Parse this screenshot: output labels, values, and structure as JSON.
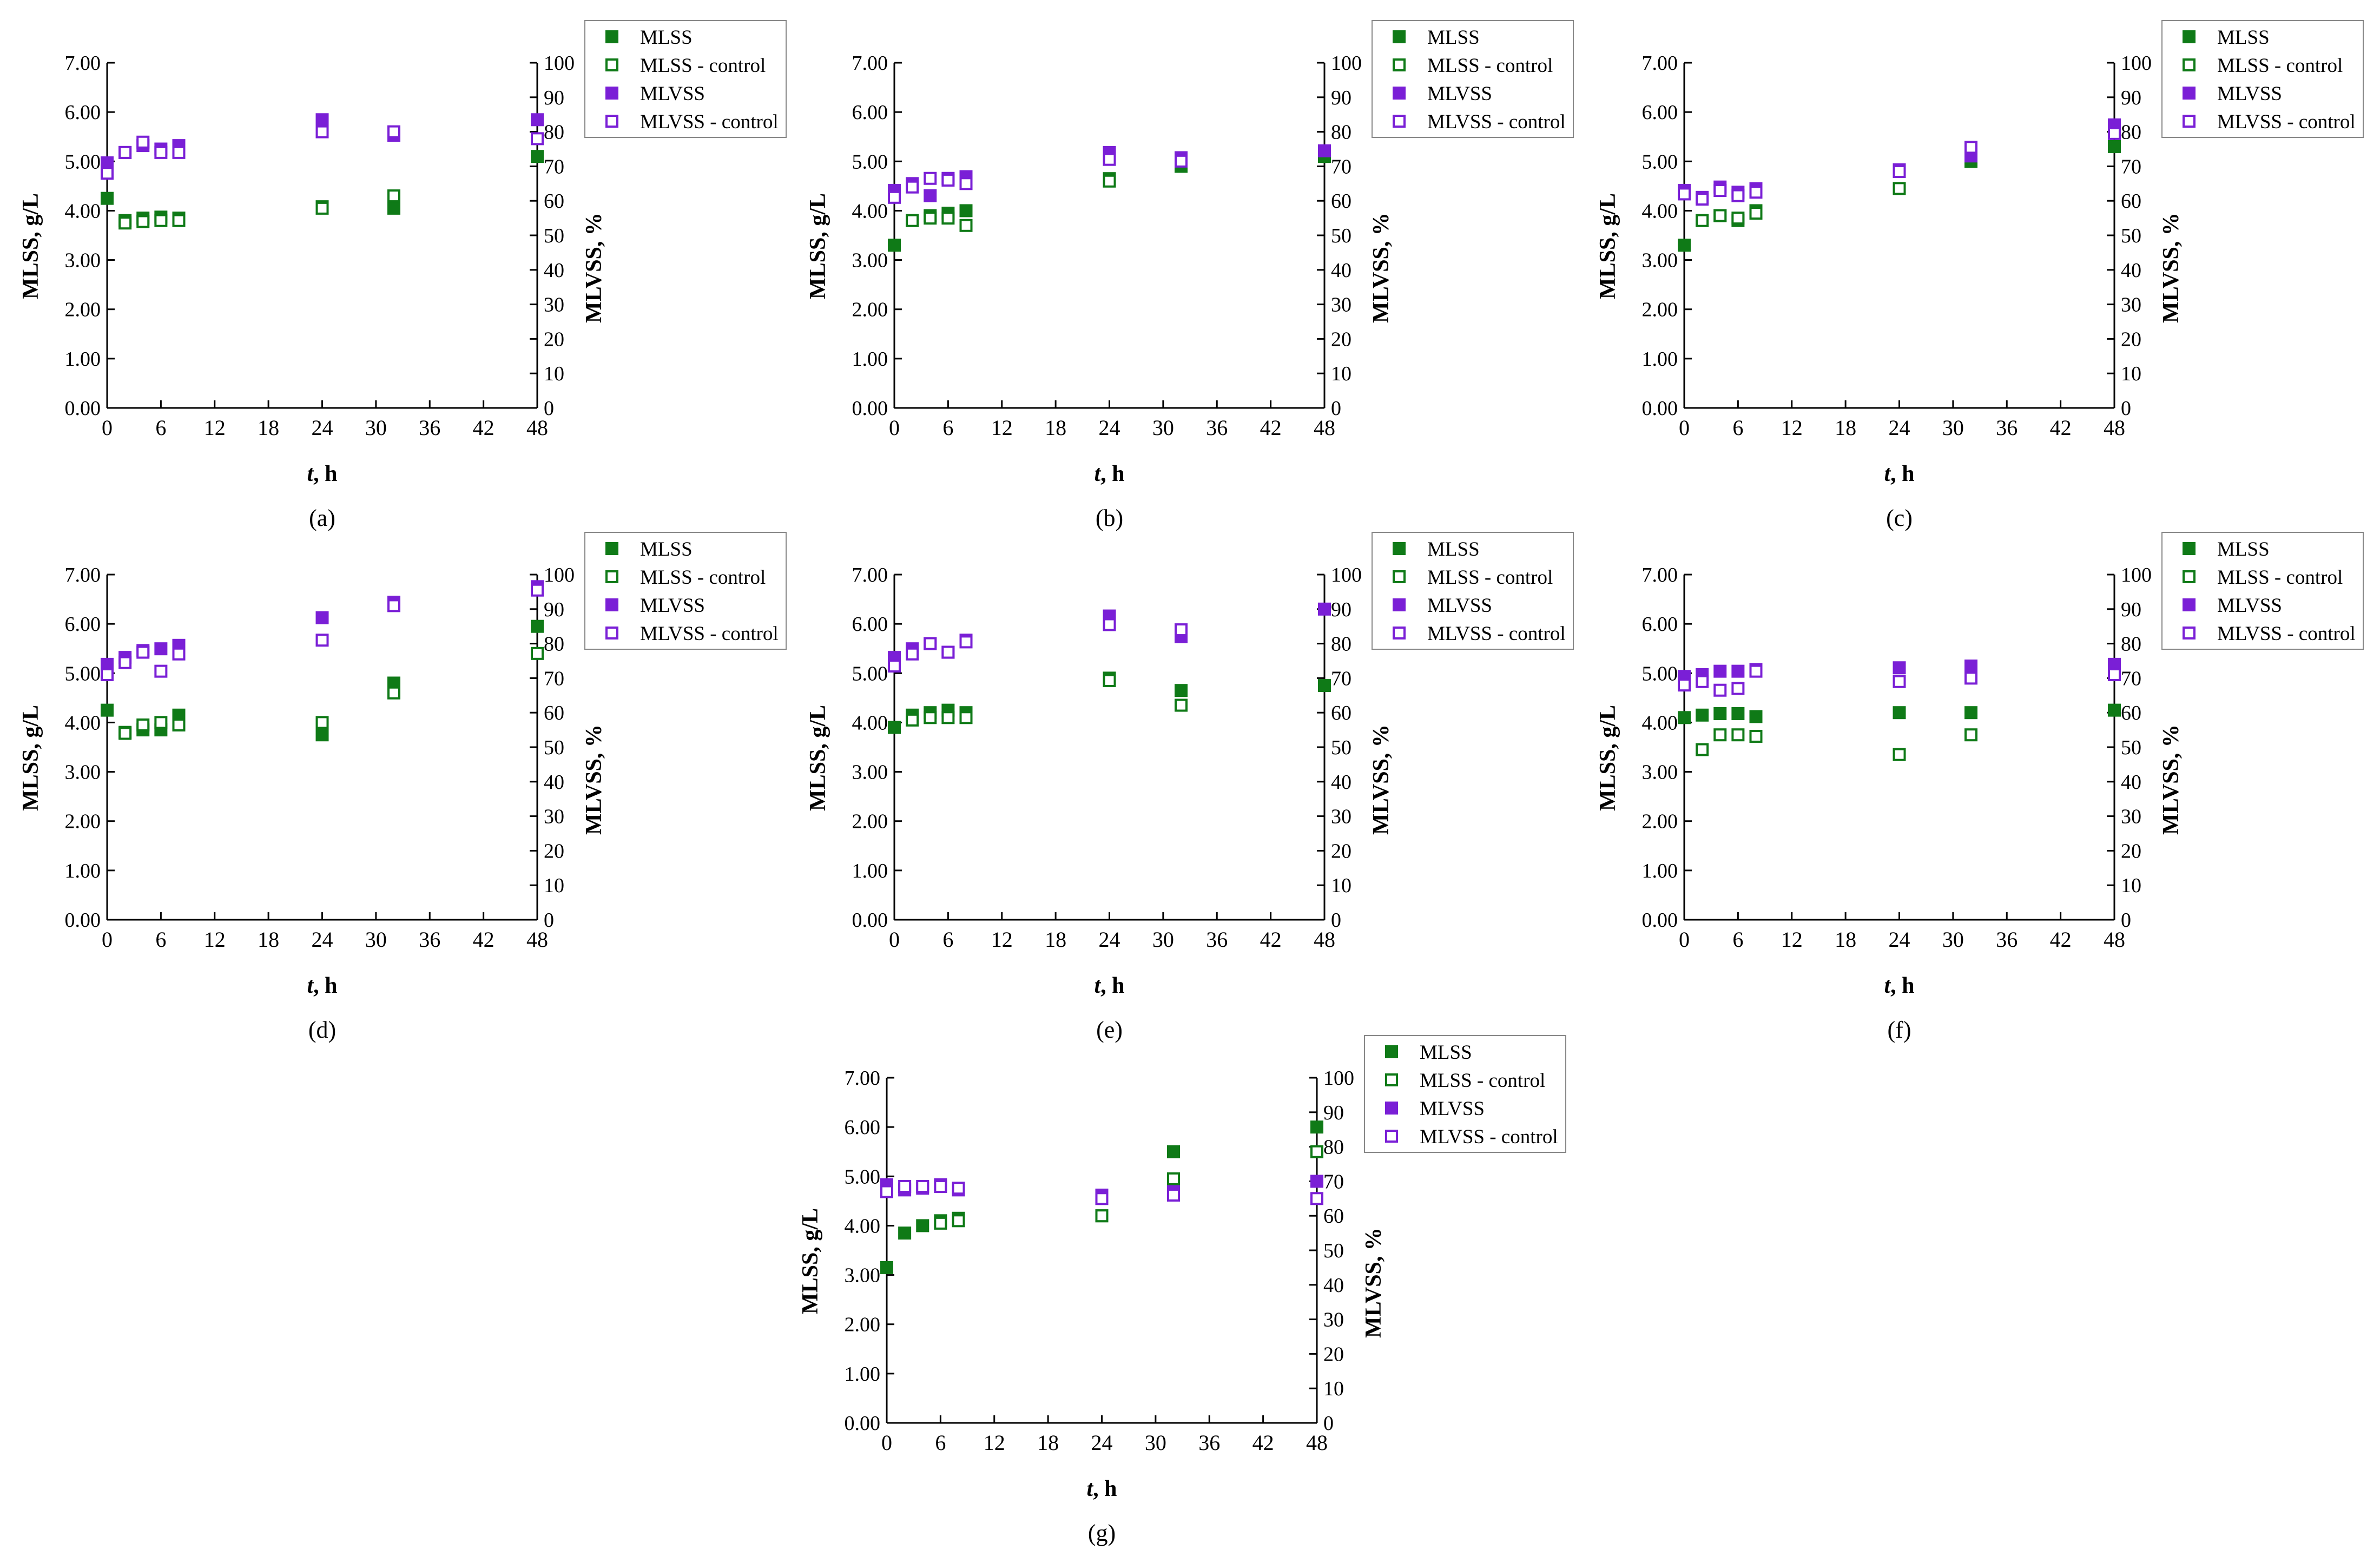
{
  "figure": {
    "panel_count": 7,
    "legend_items": [
      "MLSS",
      "MLSS - control",
      "MLVSS",
      "MLVSS - control"
    ],
    "colors": {
      "mlss": "#0f7a17",
      "mlvss": "#7a1fd6",
      "axis": "#000000",
      "legend_border": "#888888"
    },
    "marker_styles": [
      "filled-square",
      "open-square",
      "filled-square",
      "open-square"
    ]
  },
  "chart_data": [
    {
      "type": "scatter",
      "panel_label": "(a)",
      "xlabel_italic": "t",
      "xlabel_unit": ", h",
      "ylabel": "MLSS, g/L",
      "y2label": "MLVSS, %",
      "xlim": [
        0,
        48
      ],
      "ylim": [
        0,
        7
      ],
      "y2lim": [
        0,
        100
      ],
      "xticks": [
        "0",
        "6",
        "12",
        "18",
        "24",
        "30",
        "36",
        "42",
        "48"
      ],
      "yticks": [
        "0.00",
        "1.00",
        "2.00",
        "3.00",
        "4.00",
        "5.00",
        "6.00",
        "7.00"
      ],
      "y2ticks": [
        "0",
        "10",
        "20",
        "30",
        "40",
        "50",
        "60",
        "70",
        "80",
        "90",
        "100"
      ],
      "series": [
        {
          "name": "MLSS",
          "axis": "left",
          "color": "#0f7a17",
          "filled": true,
          "x": [
            0,
            2,
            4,
            6,
            8,
            24,
            32,
            48
          ],
          "y": [
            4.25,
            3.8,
            3.85,
            3.87,
            3.85,
            4.08,
            4.05,
            5.1
          ]
        },
        {
          "name": "MLSS - control",
          "axis": "left",
          "color": "#0f7a17",
          "filled": false,
          "x": [
            2,
            4,
            6,
            8,
            24,
            32
          ],
          "y": [
            3.75,
            3.78,
            3.8,
            3.8,
            4.05,
            4.3
          ]
        },
        {
          "name": "MLVSS",
          "axis": "right",
          "color": "#7a1fd6",
          "filled": true,
          "x": [
            0,
            2,
            4,
            6,
            8,
            24,
            32,
            48
          ],
          "y": [
            71,
            74,
            76,
            75,
            76,
            83.5,
            79,
            83.5
          ]
        },
        {
          "name": "MLVSS - control",
          "axis": "right",
          "color": "#7a1fd6",
          "filled": false,
          "x": [
            0,
            2,
            4,
            6,
            8,
            24,
            32,
            48
          ],
          "y": [
            68,
            74,
            77,
            74,
            74,
            80,
            80,
            78
          ]
        }
      ]
    },
    {
      "type": "scatter",
      "panel_label": "(b)",
      "xlabel_italic": "t",
      "xlabel_unit": ", h",
      "ylabel": "MLSS, g/L",
      "y2label": "MLVSS, %",
      "xlim": [
        0,
        48
      ],
      "ylim": [
        0,
        7
      ],
      "y2lim": [
        0,
        100
      ],
      "xticks": [
        "0",
        "6",
        "12",
        "18",
        "24",
        "30",
        "36",
        "42",
        "48"
      ],
      "yticks": [
        "0.00",
        "1.00",
        "2.00",
        "3.00",
        "4.00",
        "5.00",
        "6.00",
        "7.00"
      ],
      "y2ticks": [
        "0",
        "10",
        "20",
        "30",
        "40",
        "50",
        "60",
        "70",
        "80",
        "90",
        "100"
      ],
      "series": [
        {
          "name": "MLSS",
          "axis": "left",
          "color": "#0f7a17",
          "filled": true,
          "x": [
            0,
            2,
            4,
            6,
            8,
            24,
            32,
            48
          ],
          "y": [
            3.3,
            3.8,
            3.9,
            3.95,
            4.0,
            4.65,
            4.9,
            5.1
          ]
        },
        {
          "name": "MLSS - control",
          "axis": "left",
          "color": "#0f7a17",
          "filled": false,
          "x": [
            2,
            4,
            6,
            8,
            24
          ],
          "y": [
            3.8,
            3.85,
            3.85,
            3.7,
            4.6
          ]
        },
        {
          "name": "MLVSS",
          "axis": "right",
          "color": "#7a1fd6",
          "filled": true,
          "x": [
            0,
            2,
            4,
            6,
            8,
            24,
            32,
            48
          ],
          "y": [
            63,
            65,
            61.5,
            66.5,
            67,
            74,
            72.5,
            74.5
          ]
        },
        {
          "name": "MLVSS - control",
          "axis": "right",
          "color": "#7a1fd6",
          "filled": false,
          "x": [
            0,
            2,
            4,
            6,
            8,
            24,
            32
          ],
          "y": [
            61,
            64,
            66.5,
            66,
            65,
            72,
            71.5
          ]
        }
      ]
    },
    {
      "type": "scatter",
      "panel_label": "(c)",
      "xlabel_italic": "t",
      "xlabel_unit": ", h",
      "ylabel": "MLSS, g/L",
      "y2label": "MLVSS, %",
      "xlim": [
        0,
        48
      ],
      "ylim": [
        0,
        7
      ],
      "y2lim": [
        0,
        100
      ],
      "xticks": [
        "0",
        "6",
        "12",
        "18",
        "24",
        "30",
        "36",
        "42",
        "48"
      ],
      "yticks": [
        "0.00",
        "1.00",
        "2.00",
        "3.00",
        "4.00",
        "5.00",
        "6.00",
        "7.00"
      ],
      "y2ticks": [
        "0",
        "10",
        "20",
        "30",
        "40",
        "50",
        "60",
        "70",
        "80",
        "90",
        "100"
      ],
      "series": [
        {
          "name": "MLSS",
          "axis": "left",
          "color": "#0f7a17",
          "filled": true,
          "x": [
            0,
            2,
            4,
            6,
            8,
            24,
            32,
            48
          ],
          "y": [
            3.3,
            3.8,
            3.9,
            3.8,
            4.0,
            4.8,
            5.0,
            5.3
          ]
        },
        {
          "name": "MLSS - control",
          "axis": "left",
          "color": "#0f7a17",
          "filled": false,
          "x": [
            2,
            4,
            6,
            8,
            24
          ],
          "y": [
            3.8,
            3.9,
            3.85,
            3.95,
            4.45
          ]
        },
        {
          "name": "MLVSS",
          "axis": "right",
          "color": "#7a1fd6",
          "filled": true,
          "x": [
            0,
            2,
            4,
            6,
            8,
            24,
            32,
            48
          ],
          "y": [
            63,
            61,
            64,
            62.5,
            63.5,
            69,
            73,
            82
          ]
        },
        {
          "name": "MLVSS - control",
          "axis": "right",
          "color": "#7a1fd6",
          "filled": false,
          "x": [
            0,
            2,
            4,
            6,
            8,
            24,
            32,
            48
          ],
          "y": [
            62,
            60.5,
            63,
            61.5,
            62.5,
            68.5,
            75.5,
            79.5
          ]
        }
      ]
    },
    {
      "type": "scatter",
      "panel_label": "(d)",
      "xlabel_italic": "t",
      "xlabel_unit": ", h",
      "ylabel": "MLSS, g/L",
      "y2label": "MLVSS, %",
      "xlim": [
        0,
        48
      ],
      "ylim": [
        0,
        7
      ],
      "y2lim": [
        0,
        100
      ],
      "xticks": [
        "0",
        "6",
        "12",
        "18",
        "24",
        "30",
        "36",
        "42",
        "48"
      ],
      "yticks": [
        "0.00",
        "1.00",
        "2.00",
        "3.00",
        "4.00",
        "5.00",
        "6.00",
        "7.00"
      ],
      "y2ticks": [
        "0",
        "10",
        "20",
        "30",
        "40",
        "50",
        "60",
        "70",
        "80",
        "90",
        "100"
      ],
      "series": [
        {
          "name": "MLSS",
          "axis": "left",
          "color": "#0f7a17",
          "filled": true,
          "x": [
            0,
            2,
            4,
            6,
            8,
            24,
            32,
            48
          ],
          "y": [
            4.25,
            3.8,
            3.85,
            3.85,
            4.15,
            3.75,
            4.8,
            5.95
          ]
        },
        {
          "name": "MLSS - control",
          "axis": "left",
          "color": "#0f7a17",
          "filled": false,
          "x": [
            2,
            4,
            6,
            8,
            24,
            32,
            48
          ],
          "y": [
            3.78,
            3.95,
            4.0,
            3.95,
            4.0,
            4.6,
            5.4
          ]
        },
        {
          "name": "MLVSS",
          "axis": "right",
          "color": "#7a1fd6",
          "filled": true,
          "x": [
            0,
            2,
            4,
            6,
            8,
            24,
            32,
            48
          ],
          "y": [
            74,
            76,
            78,
            78.5,
            79.5,
            87.5,
            92,
            96.5
          ]
        },
        {
          "name": "MLVSS - control",
          "axis": "right",
          "color": "#7a1fd6",
          "filled": false,
          "x": [
            0,
            2,
            4,
            6,
            8,
            24,
            32,
            48
          ],
          "y": [
            71,
            74.5,
            77.5,
            72,
            77,
            81,
            91,
            95.5
          ]
        }
      ]
    },
    {
      "type": "scatter",
      "panel_label": "(e)",
      "xlabel_italic": "t",
      "xlabel_unit": ", h",
      "ylabel": "MLSS, g/L",
      "y2label": "MLVSS, %",
      "xlim": [
        0,
        48
      ],
      "ylim": [
        0,
        7
      ],
      "y2lim": [
        0,
        100
      ],
      "xticks": [
        "0",
        "6",
        "12",
        "18",
        "24",
        "30",
        "36",
        "42",
        "48"
      ],
      "yticks": [
        "0.00",
        "1.00",
        "2.00",
        "3.00",
        "4.00",
        "5.00",
        "6.00",
        "7.00"
      ],
      "y2ticks": [
        "0",
        "10",
        "20",
        "30",
        "40",
        "50",
        "60",
        "70",
        "80",
        "90",
        "100"
      ],
      "series": [
        {
          "name": "MLSS",
          "axis": "left",
          "color": "#0f7a17",
          "filled": true,
          "x": [
            0,
            2,
            4,
            6,
            8,
            24,
            32,
            48
          ],
          "y": [
            3.9,
            4.15,
            4.2,
            4.25,
            4.2,
            4.9,
            4.65,
            4.75
          ]
        },
        {
          "name": "MLSS - control",
          "axis": "left",
          "color": "#0f7a17",
          "filled": false,
          "x": [
            2,
            4,
            6,
            8,
            24,
            32
          ],
          "y": [
            4.05,
            4.1,
            4.1,
            4.1,
            4.85,
            4.35
          ]
        },
        {
          "name": "MLVSS",
          "axis": "right",
          "color": "#7a1fd6",
          "filled": true,
          "x": [
            0,
            2,
            4,
            6,
            8,
            24,
            32,
            48
          ],
          "y": [
            76,
            78.5,
            80,
            77.5,
            81,
            88,
            82,
            90
          ]
        },
        {
          "name": "MLVSS - control",
          "axis": "right",
          "color": "#7a1fd6",
          "filled": false,
          "x": [
            0,
            2,
            4,
            6,
            8,
            24,
            32
          ],
          "y": [
            73.5,
            77,
            80,
            77.5,
            80.5,
            85.5,
            84
          ]
        }
      ]
    },
    {
      "type": "scatter",
      "panel_label": "(f)",
      "xlabel_italic": "t",
      "xlabel_unit": ", h",
      "ylabel": "MLSS, g/L",
      "y2label": "MLVSS, %",
      "xlim": [
        0,
        48
      ],
      "ylim": [
        0,
        7
      ],
      "y2lim": [
        0,
        100
      ],
      "xticks": [
        "0",
        "6",
        "12",
        "18",
        "24",
        "30",
        "36",
        "42",
        "48"
      ],
      "yticks": [
        "0.00",
        "1.00",
        "2.00",
        "3.00",
        "4.00",
        "5.00",
        "6.00",
        "7.00"
      ],
      "y2ticks": [
        "0",
        "10",
        "20",
        "30",
        "40",
        "50",
        "60",
        "70",
        "80",
        "90",
        "100"
      ],
      "series": [
        {
          "name": "MLSS",
          "axis": "left",
          "color": "#0f7a17",
          "filled": true,
          "x": [
            0,
            2,
            4,
            6,
            8,
            24,
            32,
            48
          ],
          "y": [
            4.1,
            4.15,
            4.18,
            4.18,
            4.12,
            4.2,
            4.2,
            4.25
          ]
        },
        {
          "name": "MLSS - control",
          "axis": "left",
          "color": "#0f7a17",
          "filled": false,
          "x": [
            2,
            4,
            6,
            8,
            24,
            32
          ],
          "y": [
            3.45,
            3.75,
            3.75,
            3.72,
            3.35,
            3.75
          ]
        },
        {
          "name": "MLVSS",
          "axis": "right",
          "color": "#7a1fd6",
          "filled": true,
          "x": [
            0,
            2,
            4,
            6,
            8,
            24,
            32,
            48
          ],
          "y": [
            70.5,
            71,
            72,
            72,
            72.5,
            73,
            73.5,
            74
          ]
        },
        {
          "name": "MLVSS - control",
          "axis": "right",
          "color": "#7a1fd6",
          "filled": false,
          "x": [
            0,
            2,
            4,
            6,
            8,
            24,
            32,
            48
          ],
          "y": [
            68,
            69,
            66.5,
            67,
            72,
            69,
            70,
            71
          ]
        }
      ]
    },
    {
      "type": "scatter",
      "panel_label": "(g)",
      "xlabel_italic": "t",
      "xlabel_unit": ", h",
      "ylabel": "MLSS, g/L",
      "y2label": "MLVSS, %",
      "xlim": [
        0,
        48
      ],
      "ylim": [
        0,
        7
      ],
      "y2lim": [
        0,
        100
      ],
      "xticks": [
        "0",
        "6",
        "12",
        "18",
        "24",
        "30",
        "36",
        "42",
        "48"
      ],
      "yticks": [
        "0.00",
        "1.00",
        "2.00",
        "3.00",
        "4.00",
        "5.00",
        "6.00",
        "7.00"
      ],
      "y2ticks": [
        "0",
        "10",
        "20",
        "30",
        "40",
        "50",
        "60",
        "70",
        "80",
        "90",
        "100"
      ],
      "series": [
        {
          "name": "MLSS",
          "axis": "left",
          "color": "#0f7a17",
          "filled": true,
          "x": [
            0,
            2,
            4,
            6,
            8,
            24,
            32,
            48
          ],
          "y": [
            3.15,
            3.85,
            4.0,
            4.1,
            4.15,
            4.2,
            5.5,
            6.0
          ]
        },
        {
          "name": "MLSS - control",
          "axis": "left",
          "color": "#0f7a17",
          "filled": false,
          "x": [
            6,
            8,
            24,
            32,
            48
          ],
          "y": [
            4.05,
            4.1,
            4.2,
            4.95,
            5.5
          ]
        },
        {
          "name": "MLVSS",
          "axis": "right",
          "color": "#7a1fd6",
          "filled": true,
          "x": [
            0,
            2,
            4,
            6,
            8,
            24,
            32,
            48
          ],
          "y": [
            69,
            67.5,
            68,
            69,
            67.5,
            66,
            67,
            70
          ]
        },
        {
          "name": "MLVSS - control",
          "axis": "right",
          "color": "#7a1fd6",
          "filled": false,
          "x": [
            0,
            2,
            4,
            6,
            8,
            24,
            32,
            48
          ],
          "y": [
            67,
            68.5,
            68.5,
            68.5,
            68,
            65,
            66,
            65
          ]
        }
      ]
    }
  ]
}
